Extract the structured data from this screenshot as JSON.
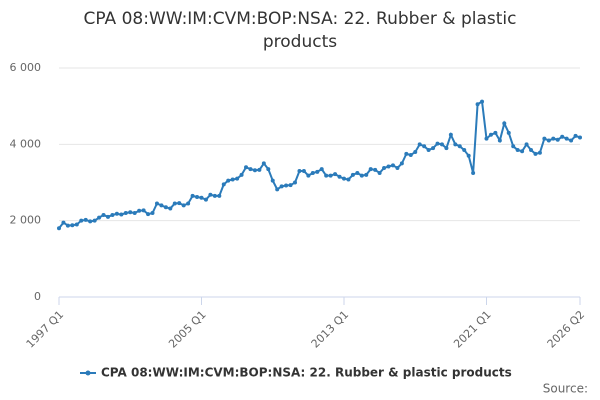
{
  "chart_data": {
    "type": "line",
    "title": "CPA 08:WW:IM:CVM:BOP:NSA: 22. Rubber & plastic products",
    "categories": [
      "1997 Q1",
      null,
      null,
      null,
      null,
      null,
      null,
      null,
      null,
      null,
      null,
      null,
      null,
      null,
      null,
      null,
      null,
      null,
      null,
      null,
      null,
      null,
      null,
      null,
      null,
      null,
      null,
      null,
      null,
      null,
      null,
      null,
      "2005 Q1",
      null,
      null,
      null,
      null,
      null,
      null,
      null,
      null,
      null,
      null,
      null,
      null,
      null,
      null,
      null,
      null,
      null,
      null,
      null,
      null,
      null,
      null,
      null,
      null,
      null,
      null,
      null,
      null,
      null,
      null,
      null,
      "2013 Q1",
      null,
      null,
      null,
      null,
      null,
      null,
      null,
      null,
      null,
      null,
      null,
      null,
      null,
      null,
      null,
      null,
      null,
      null,
      null,
      null,
      null,
      null,
      null,
      null,
      null,
      null,
      null,
      null,
      null,
      null,
      null,
      "2021 Q1",
      null,
      null,
      null,
      null,
      null,
      null,
      null,
      null,
      null,
      null,
      null,
      null,
      null,
      null,
      null,
      null,
      null,
      null,
      null,
      null,
      "2026 Q2"
    ],
    "series": [
      {
        "name": "CPA 08:WW:IM:CVM:BOP:NSA: 22. Rubber & plastic products",
        "color": "#2b7bba",
        "values": [
          1800,
          1950,
          1870,
          1880,
          1900,
          2000,
          2020,
          1980,
          2000,
          2080,
          2150,
          2100,
          2150,
          2180,
          2160,
          2200,
          2220,
          2200,
          2260,
          2270,
          2170,
          2200,
          2450,
          2400,
          2350,
          2320,
          2450,
          2460,
          2400,
          2450,
          2650,
          2620,
          2600,
          2550,
          2680,
          2650,
          2650,
          2950,
          3050,
          3080,
          3100,
          3200,
          3400,
          3350,
          3320,
          3330,
          3500,
          3350,
          3050,
          2820,
          2900,
          2920,
          2930,
          3000,
          3300,
          3300,
          3180,
          3250,
          3280,
          3350,
          3180,
          3180,
          3220,
          3150,
          3100,
          3080,
          3200,
          3250,
          3180,
          3200,
          3350,
          3330,
          3250,
          3380,
          3420,
          3450,
          3380,
          3500,
          3750,
          3720,
          3800,
          4000,
          3950,
          3850,
          3900,
          4020,
          4000,
          3900,
          4250,
          4000,
          3950,
          3850,
          3700,
          3250,
          5050,
          5120,
          4150,
          4250,
          4300,
          4100,
          4550,
          4300,
          3950,
          3850,
          3820,
          4000,
          3850,
          3750,
          3780,
          4150,
          4100,
          4150,
          4120,
          4200,
          4150,
          4100,
          4220,
          4180
        ]
      }
    ],
    "ylim": [
      0,
      6000
    ],
    "yticks": [
      {
        "value": 0,
        "label": "0"
      },
      {
        "value": 2000,
        "label": "2 000"
      },
      {
        "value": 4000,
        "label": "4 000"
      },
      {
        "value": 6000,
        "label": "6 000"
      }
    ],
    "grid": true,
    "legend": "bottom",
    "source": "Source:"
  }
}
